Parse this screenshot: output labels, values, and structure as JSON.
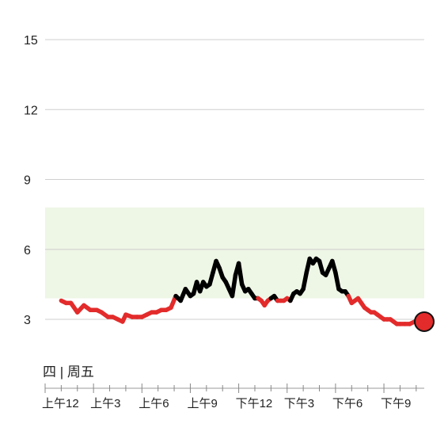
{
  "chart_data": {
    "type": "line",
    "title": "",
    "xlabel": "",
    "ylabel": "",
    "ylim": [
      0,
      15
    ],
    "xlim": [
      0,
      23.5
    ],
    "y_ticks": [
      {
        "value": 15,
        "label": "15"
      },
      {
        "value": 12,
        "label": "12"
      },
      {
        "value": 9,
        "label": "9"
      },
      {
        "value": 6,
        "label": "6"
      },
      {
        "value": 3,
        "label": "3"
      }
    ],
    "x_ticks": [
      {
        "value": 0,
        "label": "上午12"
      },
      {
        "value": 3,
        "label": "上午3"
      },
      {
        "value": 6,
        "label": "上午6"
      },
      {
        "value": 9,
        "label": "上午9"
      },
      {
        "value": 12,
        "label": "下午12"
      },
      {
        "value": 15,
        "label": "下午3"
      },
      {
        "value": 18,
        "label": "下午6"
      },
      {
        "value": 21,
        "label": "下午9"
      }
    ],
    "day_label": "四 | 周五",
    "target_range": {
      "low": 3.9,
      "high": 7.8,
      "color": "#eef6e6"
    },
    "colors": {
      "in_range": "#000000",
      "low": "#e32b2b",
      "marker": "#e32b2b"
    },
    "grid": true,
    "series": [
      {
        "x": [
          1.0,
          1.3,
          1.6,
          2.0,
          2.4,
          2.8,
          3.2,
          3.5,
          3.9,
          4.2,
          4.5,
          4.8,
          5.0,
          5.4,
          5.7,
          6.0,
          6.3,
          6.6,
          6.9,
          7.2,
          7.5,
          7.8,
          8.1,
          8.4,
          8.7,
          9.0,
          9.2,
          9.4,
          9.6,
          9.8,
          10.0,
          10.2,
          10.4,
          10.6,
          10.8,
          11.0,
          11.2,
          11.4,
          11.6,
          11.8,
          12.0,
          12.2,
          12.4,
          12.6,
          12.8,
          13.0,
          13.2,
          13.4,
          13.6,
          13.8,
          14.0,
          14.2,
          14.4,
          14.6,
          14.8,
          15.0,
          15.2,
          15.4,
          15.6,
          15.8,
          16.0,
          16.2,
          16.4,
          16.6,
          16.8,
          17.0,
          17.2,
          17.4,
          17.6,
          17.8,
          18.0,
          18.2,
          18.4,
          18.6,
          18.8,
          19.0,
          19.2,
          19.4,
          19.6,
          19.8,
          20.0,
          20.2,
          20.4,
          20.6,
          20.8,
          21.0,
          21.2,
          21.4,
          21.6,
          21.8,
          22.0,
          22.3,
          22.6,
          22.9
        ],
        "y": [
          3.8,
          3.7,
          3.7,
          3.3,
          3.6,
          3.4,
          3.4,
          3.3,
          3.1,
          3.1,
          3.0,
          2.9,
          3.2,
          3.1,
          3.1,
          3.1,
          3.2,
          3.3,
          3.3,
          3.4,
          3.4,
          3.5,
          4.0,
          3.8,
          4.3,
          4.0,
          4.1,
          4.6,
          4.2,
          4.6,
          4.4,
          4.5,
          5.0,
          5.5,
          5.2,
          4.8,
          4.6,
          4.3,
          4.0,
          4.9,
          5.4,
          4.5,
          4.2,
          4.3,
          4.1,
          3.9,
          3.9,
          3.8,
          3.6,
          3.8,
          3.9,
          4.0,
          3.8,
          3.8,
          3.8,
          3.9,
          3.8,
          4.1,
          4.2,
          4.1,
          4.3,
          5.0,
          5.6,
          5.4,
          5.6,
          5.5,
          5.0,
          4.9,
          5.2,
          5.5,
          5.0,
          4.3,
          4.2,
          4.2,
          4.0,
          3.7,
          3.8,
          3.9,
          3.7,
          3.5,
          3.4,
          3.3,
          3.3,
          3.2,
          3.1,
          3.0,
          3.0,
          3.0,
          2.9,
          2.8,
          2.8,
          2.8,
          2.8,
          2.9
        ]
      }
    ],
    "current_point": {
      "x": 23.5,
      "y": 2.9
    }
  }
}
